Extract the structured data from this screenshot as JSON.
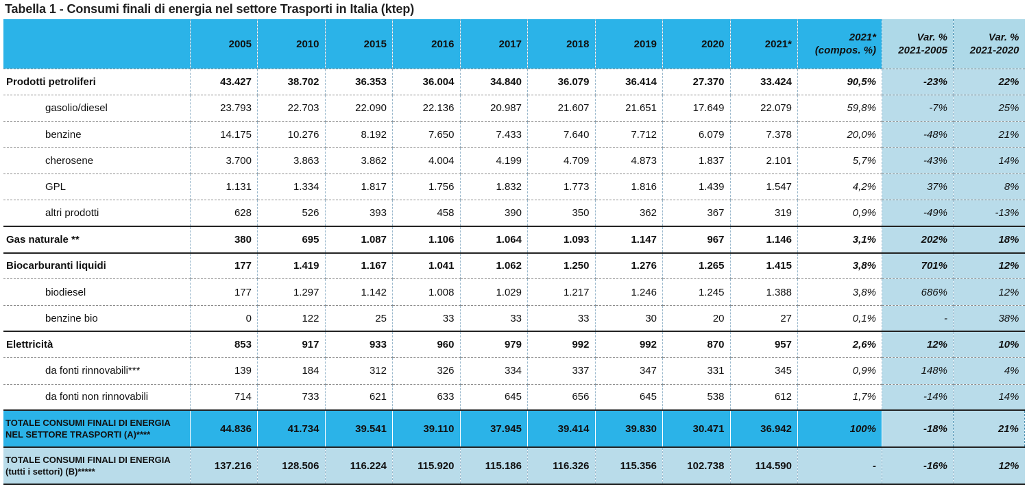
{
  "title": "Tabella 1 - Consumi finali di energia nel settore Trasporti in Italia (ktep)",
  "columns": {
    "years": [
      "2005",
      "2010",
      "2015",
      "2016",
      "2017",
      "2018",
      "2019",
      "2020",
      "2021*"
    ],
    "compos": [
      "2021*",
      "(compos. %)"
    ],
    "var1": [
      "Var. %",
      "2021-2005"
    ],
    "var2": [
      "Var. %",
      "2021-2020"
    ]
  },
  "rows": [
    {
      "label": "Prodotti petroliferi",
      "level": "main",
      "values": [
        "43.427",
        "38.702",
        "36.353",
        "36.004",
        "34.840",
        "36.079",
        "36.414",
        "27.370",
        "33.424"
      ],
      "compos": "90,5%",
      "var1": "-23%",
      "var2": "22%"
    },
    {
      "label": "gasolio/diesel",
      "level": "sub",
      "values": [
        "23.793",
        "22.703",
        "22.090",
        "22.136",
        "20.987",
        "21.607",
        "21.651",
        "17.649",
        "22.079"
      ],
      "compos": "59,8%",
      "var1": "-7%",
      "var2": "25%"
    },
    {
      "label": "benzine",
      "level": "sub",
      "values": [
        "14.175",
        "10.276",
        "8.192",
        "7.650",
        "7.433",
        "7.640",
        "7.712",
        "6.079",
        "7.378"
      ],
      "compos": "20,0%",
      "var1": "-48%",
      "var2": "21%"
    },
    {
      "label": "cherosene",
      "level": "sub",
      "values": [
        "3.700",
        "3.863",
        "3.862",
        "4.004",
        "4.199",
        "4.709",
        "4.873",
        "1.837",
        "2.101"
      ],
      "compos": "5,7%",
      "var1": "-43%",
      "var2": "14%"
    },
    {
      "label": "GPL",
      "level": "sub",
      "values": [
        "1.131",
        "1.334",
        "1.817",
        "1.756",
        "1.832",
        "1.773",
        "1.816",
        "1.439",
        "1.547"
      ],
      "compos": "4,2%",
      "var1": "37%",
      "var2": "8%"
    },
    {
      "label": "altri prodotti",
      "level": "sub",
      "values": [
        "628",
        "526",
        "393",
        "458",
        "390",
        "350",
        "362",
        "367",
        "319"
      ],
      "compos": "0,9%",
      "var1": "-49%",
      "var2": "-13%"
    },
    {
      "label": "Gas naturale **",
      "level": "main",
      "values": [
        "380",
        "695",
        "1.087",
        "1.106",
        "1.064",
        "1.093",
        "1.147",
        "967",
        "1.146"
      ],
      "compos": "3,1%",
      "var1": "202%",
      "var2": "18%"
    },
    {
      "label": "Biocarburanti liquidi",
      "level": "main",
      "values": [
        "177",
        "1.419",
        "1.167",
        "1.041",
        "1.062",
        "1.250",
        "1.276",
        "1.265",
        "1.415"
      ],
      "compos": "3,8%",
      "var1": "701%",
      "var2": "12%"
    },
    {
      "label": "biodiesel",
      "level": "sub",
      "values": [
        "177",
        "1.297",
        "1.142",
        "1.008",
        "1.029",
        "1.217",
        "1.246",
        "1.245",
        "1.388"
      ],
      "compos": "3,8%",
      "var1": "686%",
      "var2": "12%"
    },
    {
      "label": "benzine bio",
      "level": "sub",
      "values": [
        "0",
        "122",
        "25",
        "33",
        "33",
        "33",
        "30",
        "20",
        "27"
      ],
      "compos": "0,1%",
      "var1": "-",
      "var2": "38%"
    },
    {
      "label": "Elettricità",
      "level": "main",
      "values": [
        "853",
        "917",
        "933",
        "960",
        "979",
        "992",
        "992",
        "870",
        "957"
      ],
      "compos": "2,6%",
      "var1": "12%",
      "var2": "10%"
    },
    {
      "label": "da fonti rinnovabili***",
      "level": "sub",
      "values": [
        "139",
        "184",
        "312",
        "326",
        "334",
        "337",
        "347",
        "331",
        "345"
      ],
      "compos": "0,9%",
      "var1": "148%",
      "var2": "4%"
    },
    {
      "label": "da fonti non rinnovabili",
      "level": "sub",
      "values": [
        "714",
        "733",
        "621",
        "633",
        "645",
        "656",
        "645",
        "538",
        "612"
      ],
      "compos": "1,7%",
      "var1": "-14%",
      "var2": "14%"
    },
    {
      "label": "TOTALE CONSUMI FINALI DI ENERGIA NEL SETTORE TRASPORTI (A)****",
      "level": "total",
      "values": [
        "44.836",
        "41.734",
        "39.541",
        "39.110",
        "37.945",
        "39.414",
        "39.830",
        "30.471",
        "36.942"
      ],
      "compos": "100%",
      "var1": "-18%",
      "var2": "21%"
    },
    {
      "label": "TOTALE CONSUMI FINALI DI ENERGIA (tutti i settori) (B)*****",
      "level": "total2",
      "values": [
        "137.216",
        "128.506",
        "116.224",
        "115.920",
        "115.186",
        "116.326",
        "115.356",
        "102.738",
        "114.590"
      ],
      "compos": "-",
      "var1": "-16%",
      "var2": "12%"
    }
  ]
}
